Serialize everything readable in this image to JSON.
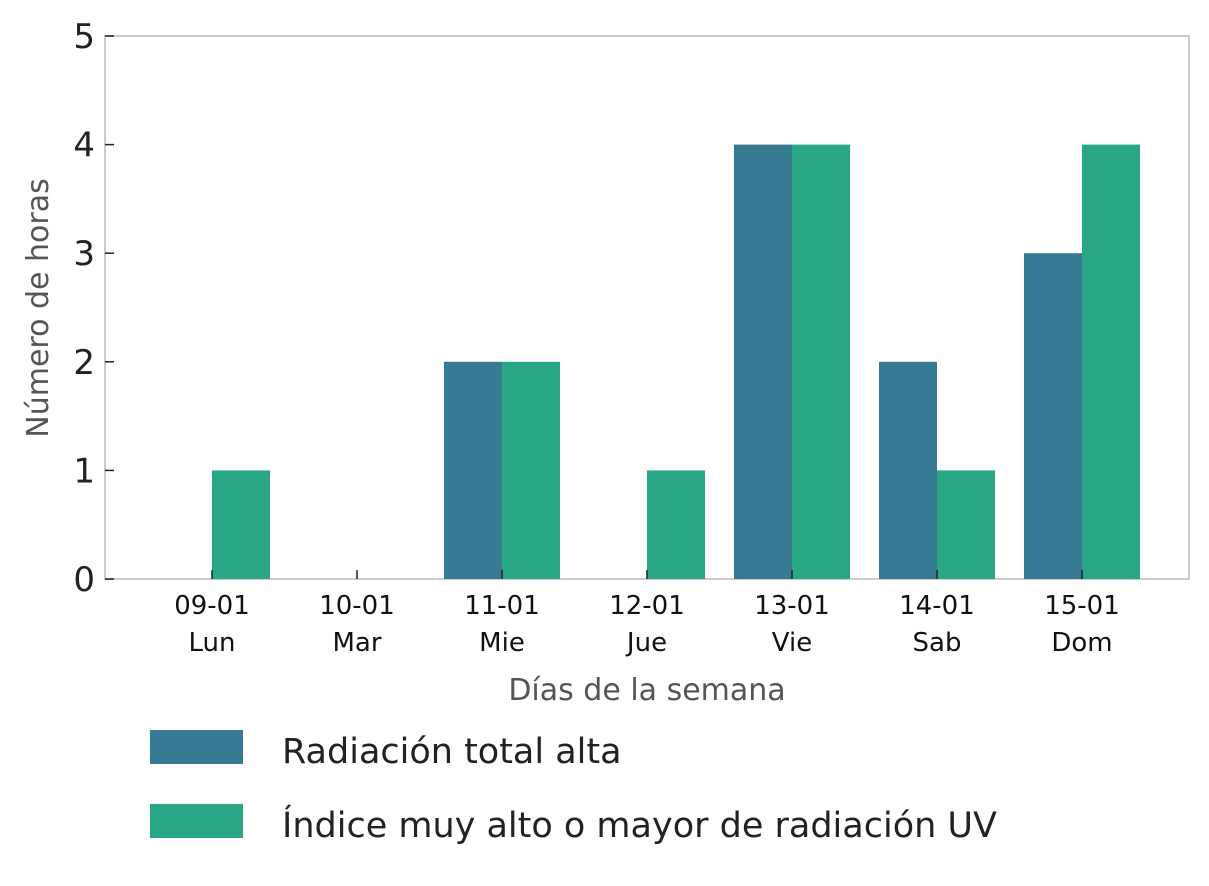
{
  "chart_data": {
    "type": "bar",
    "title": "",
    "xlabel": "Días de la semana",
    "ylabel": "Número de horas",
    "ylim": [
      0,
      5
    ],
    "yticks": [
      "0",
      "1",
      "2",
      "3",
      "4",
      "5"
    ],
    "categories": [
      {
        "date": "09-01",
        "day": "Lun"
      },
      {
        "date": "10-01",
        "day": "Mar"
      },
      {
        "date": "11-01",
        "day": "Mie"
      },
      {
        "date": "12-01",
        "day": "Jue"
      },
      {
        "date": "13-01",
        "day": "Vie"
      },
      {
        "date": "14-01",
        "day": "Sab"
      },
      {
        "date": "15-01",
        "day": "Dom"
      }
    ],
    "series": [
      {
        "name": "Radiación total alta",
        "color": "#367a93",
        "values": [
          0,
          0,
          2,
          0,
          4,
          2,
          3
        ]
      },
      {
        "name": "Índice muy alto o mayor de radiación UV",
        "color": "#29a685",
        "values": [
          1,
          0,
          2,
          1,
          4,
          1,
          4
        ]
      }
    ],
    "grid": false,
    "legend_position": "bottom"
  }
}
